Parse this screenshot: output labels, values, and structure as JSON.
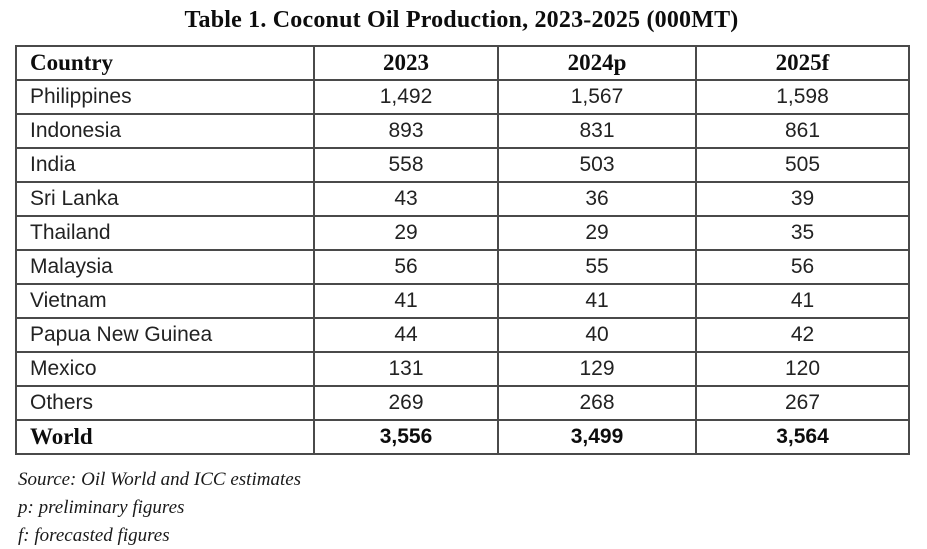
{
  "title": "Table 1. Coconut Oil Production, 2023-2025 (000MT)",
  "table": {
    "columns": [
      "Country",
      "2023",
      "2024p",
      "2025f"
    ],
    "rows": [
      {
        "country": "Philippines",
        "y2023": "1,492",
        "y2024p": "1,567",
        "y2025f": "1,598"
      },
      {
        "country": "Indonesia",
        "y2023": "893",
        "y2024p": "831",
        "y2025f": "861"
      },
      {
        "country": "India",
        "y2023": "558",
        "y2024p": "503",
        "y2025f": "505"
      },
      {
        "country": "Sri Lanka",
        "y2023": "43",
        "y2024p": "36",
        "y2025f": "39"
      },
      {
        "country": "Thailand",
        "y2023": "29",
        "y2024p": "29",
        "y2025f": "35"
      },
      {
        "country": "Malaysia",
        "y2023": "56",
        "y2024p": "55",
        "y2025f": "56"
      },
      {
        "country": "Vietnam",
        "y2023": "41",
        "y2024p": "41",
        "y2025f": "41"
      },
      {
        "country": "Papua New Guinea",
        "y2023": "44",
        "y2024p": "40",
        "y2025f": "42"
      },
      {
        "country": "Mexico",
        "y2023": "131",
        "y2024p": "129",
        "y2025f": "120"
      },
      {
        "country": "Others",
        "y2023": "269",
        "y2024p": "268",
        "y2025f": "267"
      }
    ],
    "total_row": {
      "country": "World",
      "y2023": "3,556",
      "y2024p": "3,499",
      "y2025f": "3,564"
    }
  },
  "notes": [
    "Source: Oil World and ICC estimates",
    "p: preliminary figures",
    "f: forecasted figures"
  ],
  "colors": {
    "background": "#ffffff",
    "text": "#1c1c1c",
    "border": "#4a4a4a"
  },
  "chart_data": {
    "type": "table",
    "title": "Table 1. Coconut Oil Production, 2023-2025 (000MT)",
    "categories": [
      "Philippines",
      "Indonesia",
      "India",
      "Sri Lanka",
      "Thailand",
      "Malaysia",
      "Vietnam",
      "Papua New Guinea",
      "Mexico",
      "Others",
      "World"
    ],
    "series": [
      {
        "name": "2023",
        "values": [
          1492,
          893,
          558,
          43,
          29,
          56,
          41,
          44,
          131,
          269,
          3556
        ]
      },
      {
        "name": "2024p",
        "values": [
          1567,
          831,
          503,
          36,
          29,
          55,
          41,
          40,
          129,
          268,
          3499
        ]
      },
      {
        "name": "2025f",
        "values": [
          1598,
          861,
          505,
          39,
          35,
          56,
          41,
          42,
          120,
          267,
          3564
        ]
      }
    ],
    "units": "000MT",
    "notes": [
      "Source: Oil World and ICC estimates",
      "p: preliminary figures",
      "f: forecasted figures"
    ]
  }
}
